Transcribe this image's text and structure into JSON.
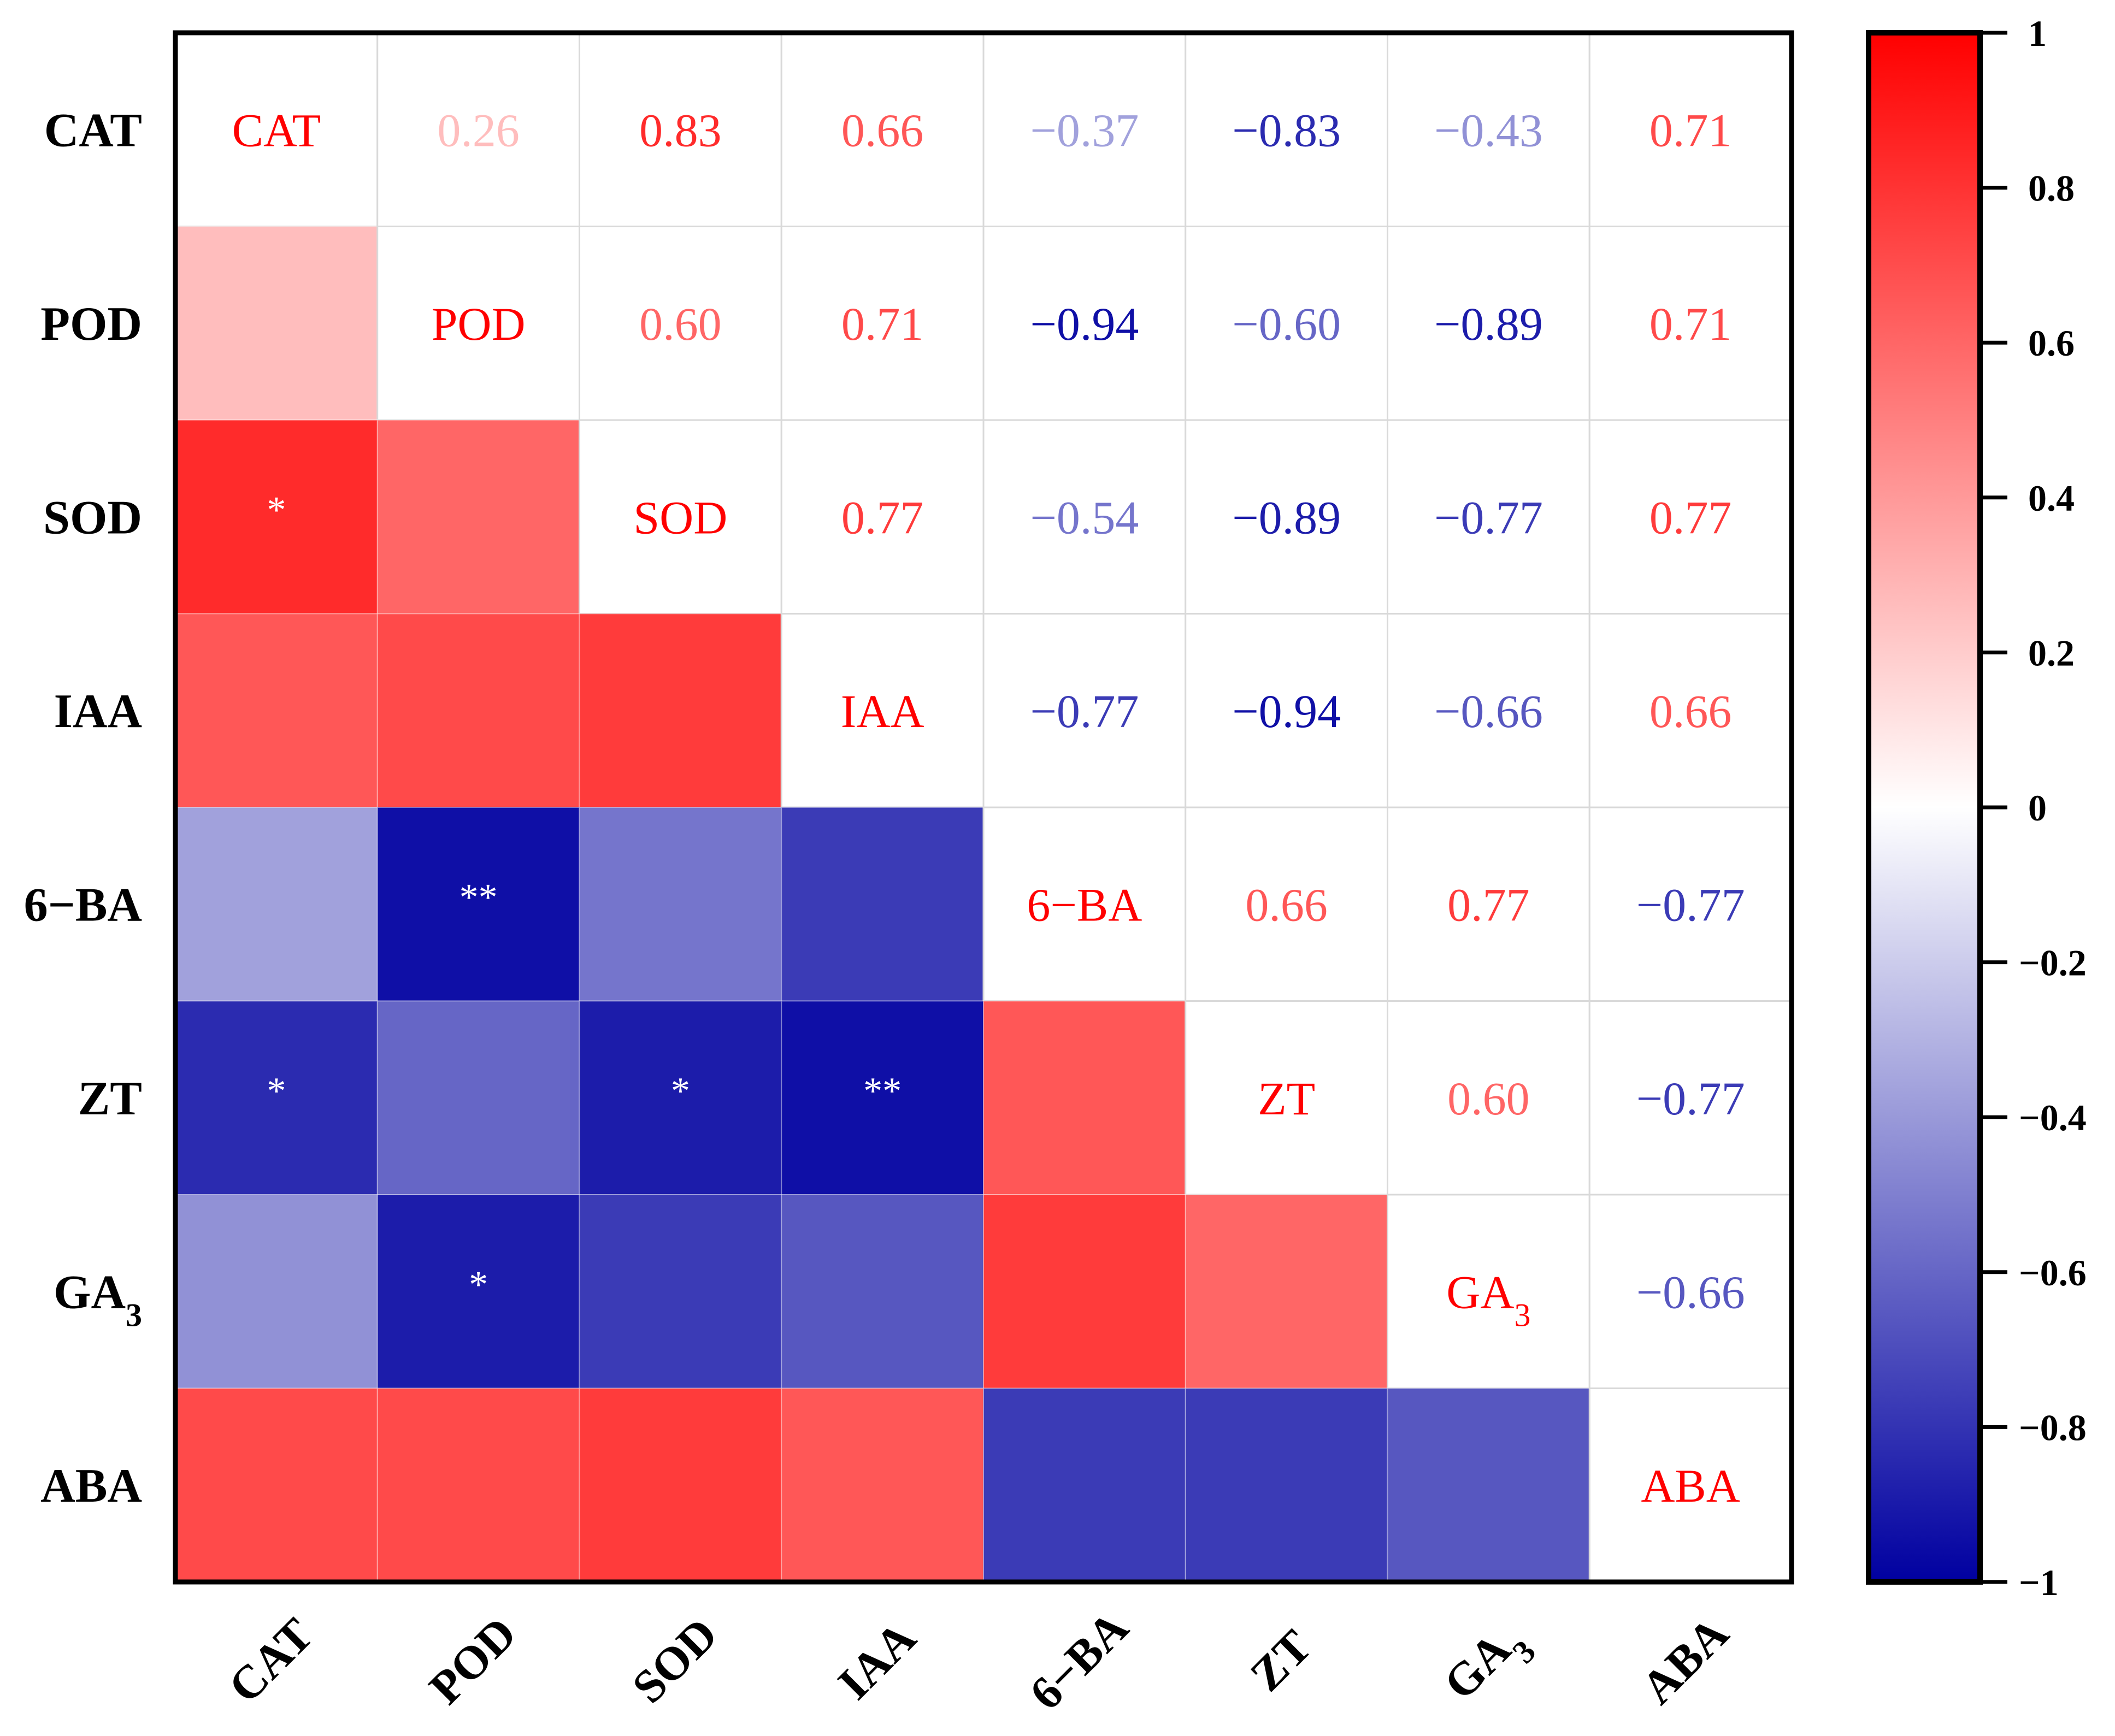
{
  "chart_data": {
    "type": "heatmap",
    "title": "",
    "variables": [
      "CAT",
      "POD",
      "SOD",
      "IAA",
      "6-BA",
      "ZT",
      "GA3",
      "ABA"
    ],
    "matrix": [
      [
        1,
        0.26,
        0.83,
        0.66,
        -0.37,
        -0.83,
        -0.43,
        0.71
      ],
      [
        0.26,
        1,
        0.6,
        0.71,
        -0.94,
        -0.6,
        -0.89,
        0.71
      ],
      [
        0.83,
        0.6,
        1,
        0.77,
        -0.54,
        -0.89,
        -0.77,
        0.77
      ],
      [
        0.66,
        0.71,
        0.77,
        1,
        -0.77,
        -0.94,
        -0.66,
        0.66
      ],
      [
        -0.37,
        -0.94,
        -0.54,
        -0.77,
        1,
        0.66,
        0.77,
        -0.77
      ],
      [
        -0.83,
        -0.6,
        -0.89,
        -0.94,
        0.66,
        1,
        0.6,
        -0.77
      ],
      [
        -0.43,
        -0.89,
        -0.77,
        -0.66,
        0.77,
        0.6,
        1,
        -0.66
      ],
      [
        0.71,
        0.71,
        0.77,
        0.66,
        -0.77,
        -0.77,
        -0.66,
        1
      ]
    ],
    "upper_triangle": "numeric labels colored by value",
    "lower_triangle": "filled color tiles",
    "significance": [
      {
        "row": "SOD",
        "col": "CAT",
        "mark": "*"
      },
      {
        "row": "6-BA",
        "col": "POD",
        "mark": "**"
      },
      {
        "row": "ZT",
        "col": "CAT",
        "mark": "*"
      },
      {
        "row": "ZT",
        "col": "SOD",
        "mark": "*"
      },
      {
        "row": "ZT",
        "col": "IAA",
        "mark": "**"
      },
      {
        "row": "GA3",
        "col": "POD",
        "mark": "*"
      }
    ],
    "colorbar": {
      "range": [
        -1,
        1
      ],
      "ticks": [
        "1",
        "0.8",
        "0.6",
        "0.4",
        "0.2",
        "0",
        "−0.2",
        "−0.4",
        "−0.6",
        "−0.8",
        "−1"
      ],
      "tick_values": [
        1,
        0.8,
        0.6,
        0.4,
        0.2,
        0,
        -0.2,
        -0.4,
        -0.6,
        -0.8,
        -1
      ],
      "placement": "right"
    },
    "colors": {
      "positive": "#FF0000",
      "zero": "#FFFFFF",
      "negative": "#0000A0",
      "grid": "#D9D9D9"
    }
  }
}
